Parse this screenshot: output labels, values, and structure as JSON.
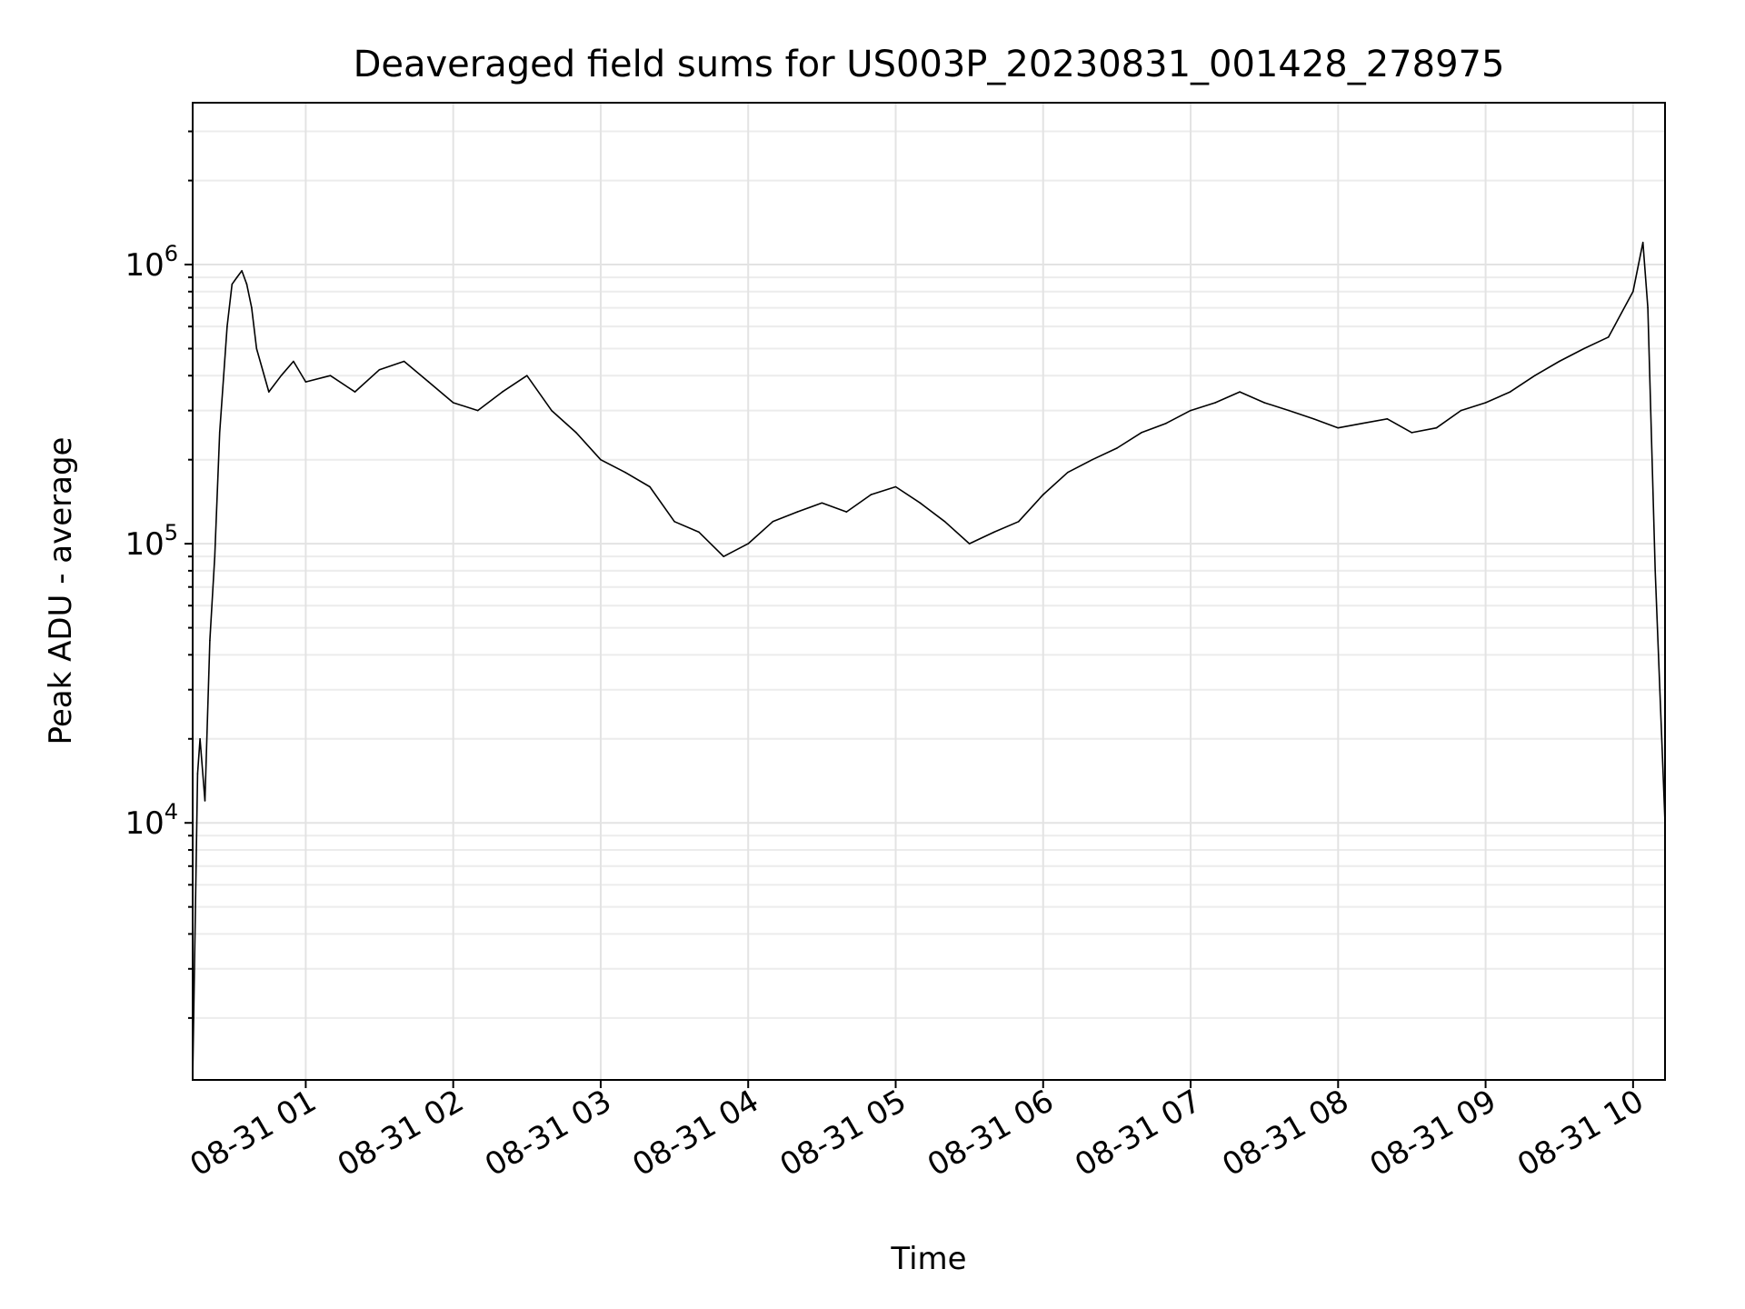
{
  "chart_data": {
    "type": "line",
    "title": "Deaveraged field sums for US003P_20230831_001428_278975",
    "xlabel": "Time",
    "ylabel": "Peak ADU - average",
    "yscale": "log",
    "ylim": [
      1200,
      3800000
    ],
    "xlim": [
      "2023-08-31 00:14",
      "2023-08-31 10:13"
    ],
    "x_ticks": [
      "08-31 01",
      "08-31 02",
      "08-31 03",
      "08-31 04",
      "08-31 05",
      "08-31 06",
      "08-31 07",
      "08-31 08",
      "08-31 09",
      "08-31 10"
    ],
    "y_ticks": [
      {
        "base": "10",
        "exp": "4",
        "value": 10000
      },
      {
        "base": "10",
        "exp": "5",
        "value": 100000
      },
      {
        "base": "10",
        "exp": "6",
        "value": 1000000
      }
    ],
    "grid": true,
    "line_color": "#000000",
    "series": [
      {
        "x": [
          "2023-08-31 00:14",
          "2023-08-31 00:16",
          "2023-08-31 00:17",
          "2023-08-31 00:19",
          "2023-08-31 00:21",
          "2023-08-31 00:23",
          "2023-08-31 00:25",
          "2023-08-31 00:28",
          "2023-08-31 00:30",
          "2023-08-31 00:32",
          "2023-08-31 00:34",
          "2023-08-31 00:36",
          "2023-08-31 00:38",
          "2023-08-31 00:40",
          "2023-08-31 00:45",
          "2023-08-31 00:50",
          "2023-08-31 00:55",
          "2023-08-31 01:00",
          "2023-08-31 01:10",
          "2023-08-31 01:20",
          "2023-08-31 01:30",
          "2023-08-31 01:40",
          "2023-08-31 01:50",
          "2023-08-31 02:00",
          "2023-08-31 02:10",
          "2023-08-31 02:20",
          "2023-08-31 02:30",
          "2023-08-31 02:40",
          "2023-08-31 02:50",
          "2023-08-31 03:00",
          "2023-08-31 03:10",
          "2023-08-31 03:20",
          "2023-08-31 03:30",
          "2023-08-31 03:40",
          "2023-08-31 03:50",
          "2023-08-31 04:00",
          "2023-08-31 04:10",
          "2023-08-31 04:20",
          "2023-08-31 04:30",
          "2023-08-31 04:40",
          "2023-08-31 04:50",
          "2023-08-31 05:00",
          "2023-08-31 05:10",
          "2023-08-31 05:20",
          "2023-08-31 05:30",
          "2023-08-31 05:40",
          "2023-08-31 05:50",
          "2023-08-31 06:00",
          "2023-08-31 06:10",
          "2023-08-31 06:20",
          "2023-08-31 06:30",
          "2023-08-31 06:40",
          "2023-08-31 06:50",
          "2023-08-31 07:00",
          "2023-08-31 07:10",
          "2023-08-31 07:20",
          "2023-08-31 07:30",
          "2023-08-31 07:40",
          "2023-08-31 07:50",
          "2023-08-31 08:00",
          "2023-08-31 08:10",
          "2023-08-31 08:20",
          "2023-08-31 08:30",
          "2023-08-31 08:40",
          "2023-08-31 08:50",
          "2023-08-31 09:00",
          "2023-08-31 09:10",
          "2023-08-31 09:20",
          "2023-08-31 09:30",
          "2023-08-31 09:40",
          "2023-08-31 09:50",
          "2023-08-31 10:00",
          "2023-08-31 10:04",
          "2023-08-31 10:06",
          "2023-08-31 10:09",
          "2023-08-31 10:13"
        ],
        "y": [
          1200,
          15000,
          20000,
          12000,
          45000,
          90000,
          250000,
          600000,
          850000,
          900000,
          950000,
          850000,
          700000,
          500000,
          350000,
          400000,
          450000,
          380000,
          400000,
          350000,
          420000,
          450000,
          380000,
          320000,
          300000,
          350000,
          400000,
          300000,
          250000,
          200000,
          180000,
          160000,
          120000,
          110000,
          90000,
          100000,
          120000,
          130000,
          140000,
          130000,
          150000,
          160000,
          140000,
          120000,
          100000,
          110000,
          120000,
          150000,
          180000,
          200000,
          220000,
          250000,
          270000,
          300000,
          320000,
          350000,
          320000,
          300000,
          280000,
          260000,
          270000,
          280000,
          250000,
          260000,
          300000,
          320000,
          350000,
          400000,
          450000,
          500000,
          550000,
          800000,
          1200000,
          700000,
          80000,
          10000
        ]
      }
    ]
  }
}
